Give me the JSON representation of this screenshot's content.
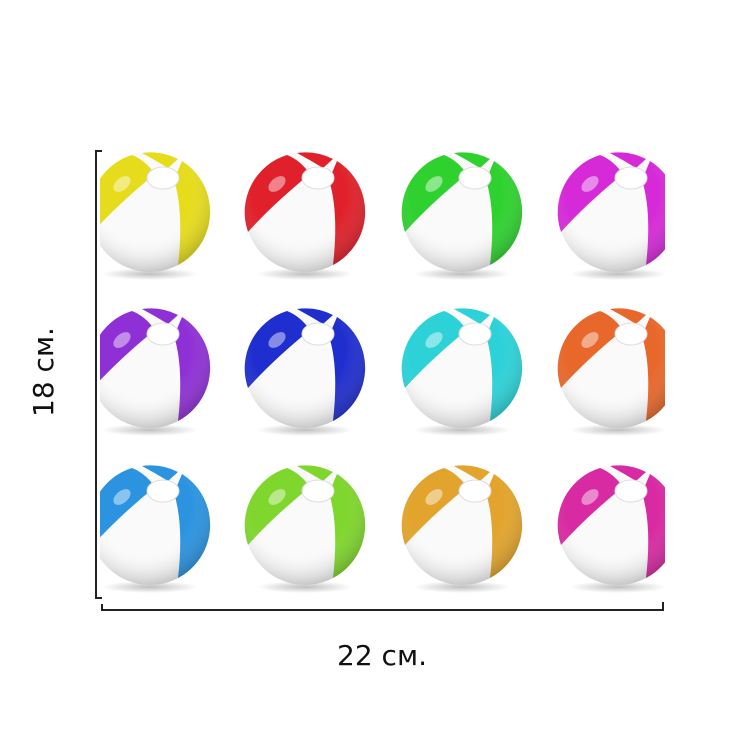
{
  "dimensions": {
    "height_label": "18 см.",
    "width_label": "22 см."
  }
}
